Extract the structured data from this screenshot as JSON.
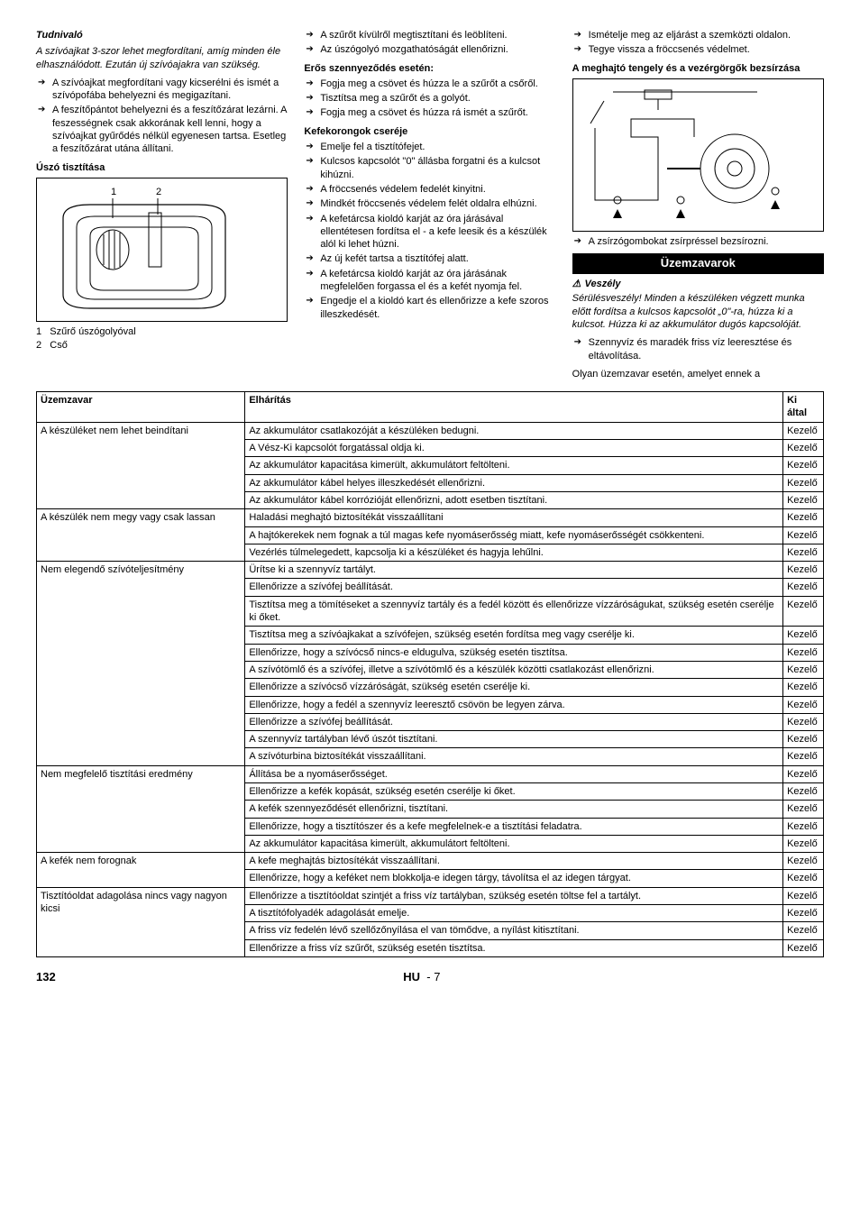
{
  "col1": {
    "heading": "Tudnivaló",
    "para": "A szívóajkat 3-szor lehet megfordítani, amíg minden éle elhasználódott. Ezután új szívóajakra van szükség.",
    "bullets": [
      "A szívóajkat megfordítani vagy kicserélni és ismét a szívópofába behelyezni és megigazítani.",
      "A feszítőpántot behelyezni és a feszítőzárat lezárni. A feszességnek csak akkorának kell lenni, hogy a szívóajkat gyűrődés nélkül egyenesen tartsa. Esetleg a feszítőzárat utána állítani."
    ],
    "sub1": "Úszó tisztítása",
    "fig_labels": {
      "l1": "1",
      "l2": "2"
    },
    "legend": [
      {
        "n": "1",
        "t": "Szűrő úszógolyóval"
      },
      {
        "n": "2",
        "t": "Cső"
      }
    ]
  },
  "col2": {
    "bullets1": [
      "A szűrőt kívülről megtisztítani és leöblíteni.",
      "Az úszógolyó mozgathatóságát ellenőrizni."
    ],
    "sub1": "Erős szennyeződés esetén:",
    "bullets2": [
      "Fogja meg a csövet és húzza le a szűrőt a csőről.",
      "Tisztítsa meg a szűrőt és a golyót.",
      "Fogja meg a csövet és húzza rá ismét a szűrőt."
    ],
    "sub2": "Kefekorongok cseréje",
    "bullets3": [
      "Emelje fel a tisztítófejet.",
      "Kulcsos kapcsolót \"0\" állásba forgatni és a kulcsot kihúzni.",
      "A fröccsenés védelem fedelét kinyitni.",
      "Mindkét fröccsenés védelem felét oldalra elhúzni.",
      "A kefetárcsa kioldó karját az óra járásával ellentétesen fordítsa el - a kefe leesik és a készülék alól ki lehet húzni.",
      "Az új kefét tartsa a tisztítófej alatt.",
      "A kefetárcsa kioldó karját az óra járásának megfelelően forgassa el és a kefét nyomja fel.",
      "Engedje el a kioldó kart és ellenőrizze a kefe szoros illeszkedését."
    ]
  },
  "col3": {
    "bullets1": [
      "Ismételje meg az eljárást a szemközti oldalon.",
      "Tegye vissza a fröccsenés védelmet."
    ],
    "sub1": "A meghajtó tengely és a vezérgörgők bezsírzása",
    "bullets2": [
      "A zsírzógombokat zsírpréssel bezsírozni."
    ],
    "bar": "Üzemzavarok",
    "warn": "Veszély",
    "warn_para": "Sérülésveszély! Minden a készüléken végzett munka előtt fordítsa a kulcsos kapcsolót „0\"-ra, húzza ki a kulcsot. Húzza ki az akkumulátor dugós kapcsolóját.",
    "bullets3": [
      "Szennyvíz és maradék friss víz leeresztése és eltávolítása."
    ],
    "tail": "Olyan üzemzavar esetén, amelyet ennek a"
  },
  "table": {
    "headers": [
      "Üzemzavar",
      "Elhárítás",
      "Ki által"
    ],
    "groups": [
      {
        "fault": "A készüléket nem lehet beindítani",
        "rows": [
          [
            "Az akkumulátor csatlakozóját a készüléken bedugni.",
            "Kezelő"
          ],
          [
            "A Vész-Ki kapcsolót forgatással oldja ki.",
            "Kezelő"
          ],
          [
            "Az akkumulátor kapacitása kimerült, akkumulátort feltölteni.",
            "Kezelő"
          ],
          [
            "Az akkumulátor kábel helyes illeszkedését ellenőrizni.",
            "Kezelő"
          ],
          [
            "Az akkumulátor kábel korrózióját ellenőrizni, adott esetben tisztítani.",
            "Kezelő"
          ]
        ]
      },
      {
        "fault": "A készülék nem megy vagy csak lassan",
        "rows": [
          [
            "Haladási meghajtó biztosítékát visszaállítani",
            "Kezelő"
          ],
          [
            "A hajtókerekek nem fognak a túl magas kefe nyomáserősség miatt, kefe nyomáserősségét csökkenteni.",
            "Kezelő"
          ],
          [
            "Vezérlés túlmelegedett, kapcsolja ki a készüléket és hagyja lehűlni.",
            "Kezelő"
          ]
        ]
      },
      {
        "fault": "Nem elegendő szívóteljesítmény",
        "rows": [
          [
            "Ürítse ki a szennyvíz tartályt.",
            "Kezelő"
          ],
          [
            "Ellenőrizze a szívófej beállítását.",
            "Kezelő"
          ],
          [
            "Tisztítsa meg a tömítéseket a szennyvíz tartály és a fedél között és ellenőrizze vízzáróságukat, szükség esetén cserélje ki őket.",
            "Kezelő"
          ],
          [
            "Tisztítsa meg a szívóajkakat a szívófejen, szükség esetén fordítsa meg vagy cserélje ki.",
            "Kezelő"
          ],
          [
            "Ellenőrizze, hogy a szívócső nincs-e eldugulva, szükség esetén tisztítsa.",
            "Kezelő"
          ],
          [
            "A szívótömlő és a szívófej, illetve a szívótömlő és a készülék közötti csatlakozást ellenőrizni.",
            "Kezelő"
          ],
          [
            "Ellenőrizze a szívócső vízzáróságát, szükség esetén cserélje ki.",
            "Kezelő"
          ],
          [
            "Ellenőrizze, hogy a fedél a szennyvíz leeresztő csövön be legyen zárva.",
            "Kezelő"
          ],
          [
            "Ellenőrizze a szívófej beállítását.",
            "Kezelő"
          ],
          [
            "A szennyvíz tartályban lévő úszót tisztítani.",
            "Kezelő"
          ],
          [
            "A szívóturbina biztosítékát visszaállítani.",
            "Kezelő"
          ]
        ]
      },
      {
        "fault": "Nem megfelelő tisztítási eredmény",
        "rows": [
          [
            "Állítása be a nyomáserősséget.",
            "Kezelő"
          ],
          [
            "Ellenőrizze a kefék kopását, szükség esetén cserélje ki őket.",
            "Kezelő"
          ],
          [
            "A kefék szennyeződését ellenőrizni, tisztítani.",
            "Kezelő"
          ],
          [
            "Ellenőrizze, hogy a tisztítószer és a kefe megfelelnek-e a tisztítási feladatra.",
            "Kezelő"
          ],
          [
            "Az akkumulátor kapacitása kimerült, akkumulátort feltölteni.",
            "Kezelő"
          ]
        ]
      },
      {
        "fault": "A kefék nem forognak",
        "rows": [
          [
            "A kefe meghajtás biztosítékát visszaállítani.",
            "Kezelő"
          ],
          [
            "Ellenőrizze, hogy a keféket nem blokkolja-e idegen tárgy, távolítsa el az idegen tárgyat.",
            "Kezelő"
          ]
        ]
      },
      {
        "fault": "Tisztítóoldat adagolása nincs vagy nagyon kicsi",
        "rows": [
          [
            "Ellenőrizze a tisztítóoldat szintjét a friss víz tartályban, szükség esetén töltse fel a tartályt.",
            "Kezelő"
          ],
          [
            "A tisztítófolyadék adagolását emelje.",
            "Kezelő"
          ],
          [
            "A friss víz fedelén lévő szellőzőnyílása el van tömődve, a nyílást kitisztítani.",
            "Kezelő"
          ],
          [
            "Ellenőrizze a friss víz szűrőt, szükség esetén tisztítsa.",
            "Kezelő"
          ]
        ]
      }
    ]
  },
  "footer": {
    "page": "132",
    "lang": "HU",
    "sub": "- 7"
  }
}
